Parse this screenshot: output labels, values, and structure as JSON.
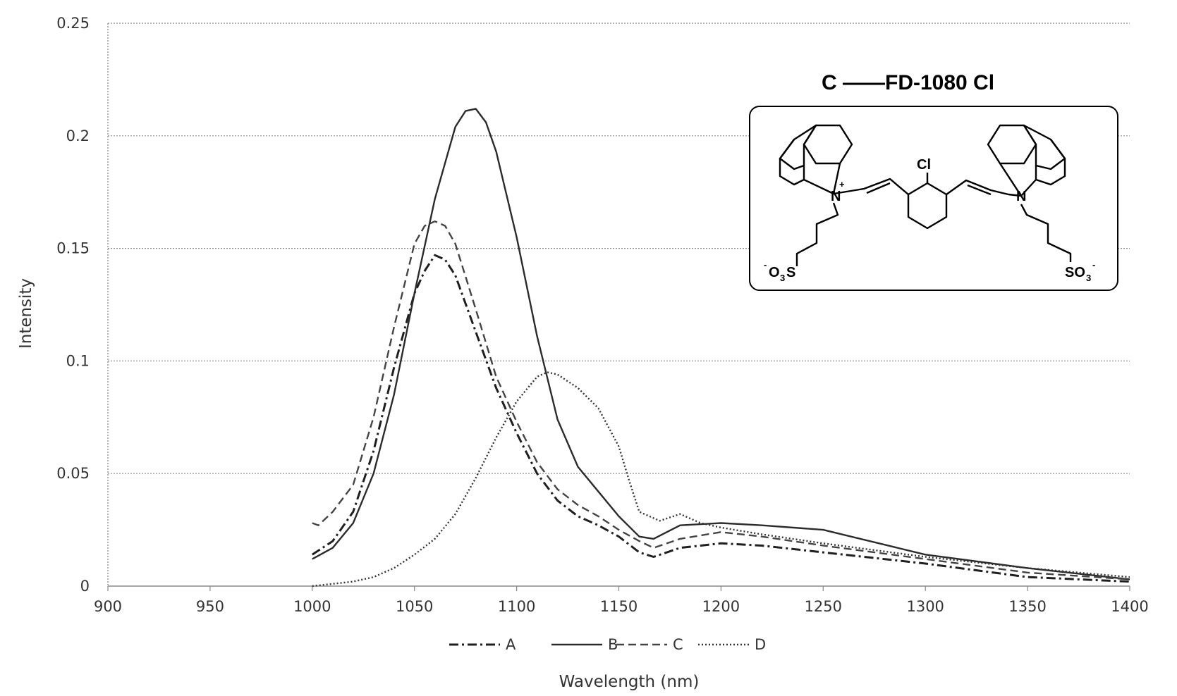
{
  "chart_data": {
    "type": "line",
    "title": "",
    "xlabel": "Wavelength (nm)",
    "ylabel": "Intensity",
    "xlim": [
      900,
      1400
    ],
    "ylim": [
      0,
      0.25
    ],
    "x_ticks": [
      "900",
      "950",
      "1000",
      "1050",
      "1100",
      "1150",
      "1200",
      "1250",
      "1300",
      "1350",
      "1400"
    ],
    "y_ticks": [
      "0",
      "0.05",
      "0.1",
      "0.15",
      "0.2",
      "0.25"
    ],
    "grid": "horizontal dotted",
    "legend_position": "bottom",
    "series": [
      {
        "name": "A",
        "dash": "dashdot",
        "x": [
          1000,
          1010,
          1020,
          1030,
          1040,
          1050,
          1055,
          1060,
          1065,
          1070,
          1080,
          1090,
          1100,
          1110,
          1120,
          1130,
          1140,
          1150,
          1160,
          1167,
          1180,
          1200,
          1220,
          1250,
          1300,
          1350,
          1400
        ],
        "y": [
          0.014,
          0.02,
          0.033,
          0.06,
          0.097,
          0.13,
          0.14,
          0.147,
          0.145,
          0.138,
          0.113,
          0.088,
          0.068,
          0.05,
          0.038,
          0.031,
          0.027,
          0.022,
          0.015,
          0.013,
          0.017,
          0.019,
          0.018,
          0.015,
          0.01,
          0.004,
          0.002
        ]
      },
      {
        "name": "B",
        "dash": "solid",
        "x": [
          1000,
          1010,
          1020,
          1030,
          1040,
          1050,
          1060,
          1070,
          1075,
          1080,
          1085,
          1090,
          1100,
          1110,
          1120,
          1130,
          1140,
          1150,
          1160,
          1167,
          1180,
          1200,
          1220,
          1250,
          1300,
          1350,
          1400
        ],
        "y": [
          0.012,
          0.017,
          0.028,
          0.05,
          0.085,
          0.13,
          0.172,
          0.204,
          0.211,
          0.212,
          0.206,
          0.193,
          0.155,
          0.111,
          0.074,
          0.053,
          0.042,
          0.031,
          0.022,
          0.021,
          0.027,
          0.028,
          0.027,
          0.025,
          0.014,
          0.008,
          0.003
        ]
      },
      {
        "name": "C",
        "dash": "dashed",
        "x": [
          1000,
          1003,
          1010,
          1020,
          1030,
          1040,
          1050,
          1055,
          1060,
          1065,
          1070,
          1080,
          1090,
          1100,
          1110,
          1120,
          1130,
          1140,
          1150,
          1160,
          1167,
          1180,
          1200,
          1220,
          1250,
          1300,
          1350,
          1400
        ],
        "y": [
          0.028,
          0.027,
          0.033,
          0.045,
          0.075,
          0.115,
          0.152,
          0.16,
          0.162,
          0.16,
          0.152,
          0.123,
          0.093,
          0.073,
          0.055,
          0.043,
          0.036,
          0.031,
          0.025,
          0.02,
          0.017,
          0.021,
          0.024,
          0.022,
          0.018,
          0.012,
          0.006,
          0.003
        ]
      },
      {
        "name": "D",
        "dash": "dotted",
        "x": [
          1000,
          1010,
          1020,
          1030,
          1040,
          1050,
          1060,
          1070,
          1080,
          1090,
          1100,
          1110,
          1115,
          1120,
          1130,
          1140,
          1150,
          1155,
          1160,
          1170,
          1180,
          1190,
          1200,
          1220,
          1250,
          1300,
          1350,
          1400
        ],
        "y": [
          0.0,
          0.001,
          0.002,
          0.004,
          0.008,
          0.014,
          0.021,
          0.032,
          0.048,
          0.066,
          0.082,
          0.093,
          0.095,
          0.094,
          0.088,
          0.079,
          0.062,
          0.047,
          0.033,
          0.029,
          0.032,
          0.028,
          0.026,
          0.023,
          0.019,
          0.013,
          0.008,
          0.004
        ]
      }
    ]
  },
  "inset": {
    "title": "C ——FD-1080 Cl",
    "structure": {
      "chloro": "Cl",
      "nitrogen_left": "N",
      "charge": "+",
      "nitrogen_right": "N",
      "sulfonate_left_prefix": "-",
      "sulfonate_left_a": "O",
      "sulfonate_left_sub": "3",
      "sulfonate_left_b": "S",
      "sulfonate_right_a": "SO",
      "sulfonate_right_sub": "3",
      "sulfonate_right_suffix": "-"
    }
  }
}
